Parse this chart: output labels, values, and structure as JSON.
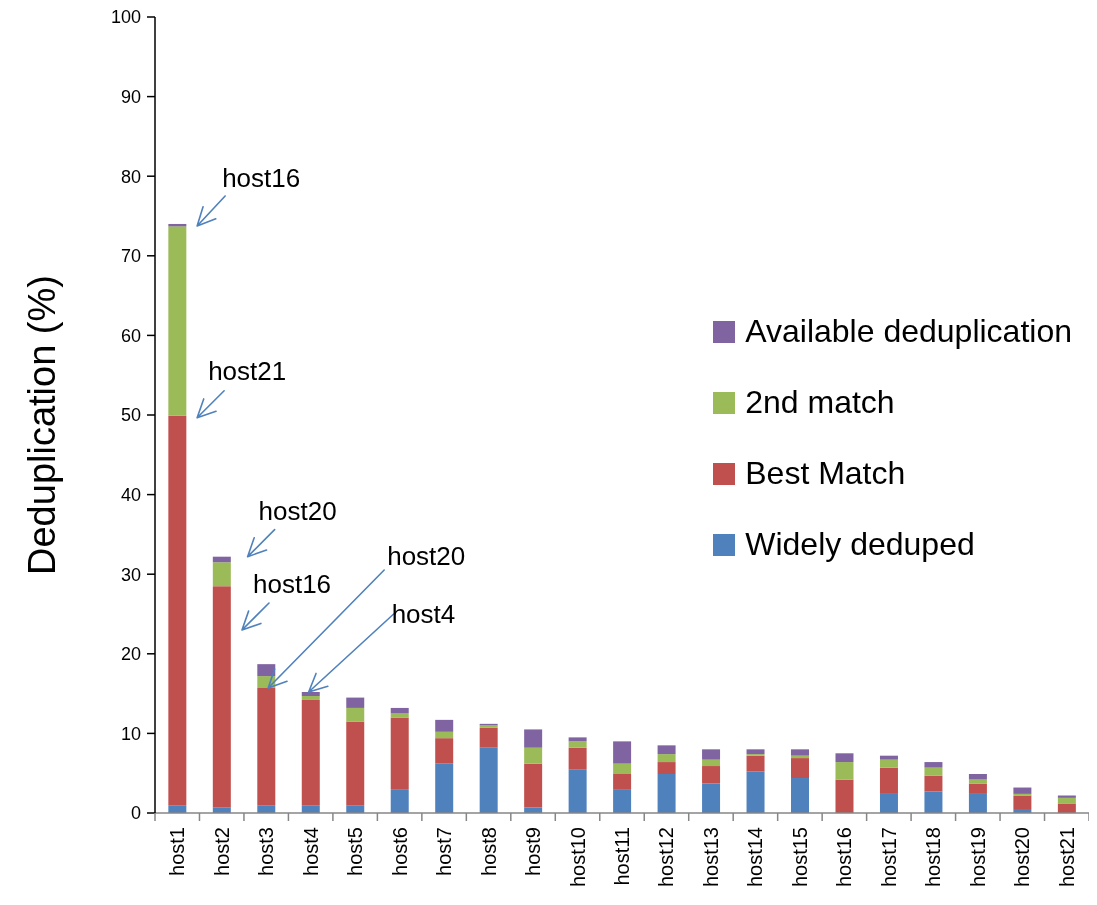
{
  "chart_data": {
    "type": "bar",
    "stacked": true,
    "ylabel": "Deduplication (%)",
    "categories": [
      "host1",
      "host2",
      "host3",
      "host4",
      "host5",
      "host6",
      "host7",
      "host8",
      "host9",
      "host10",
      "host11",
      "host12",
      "host13",
      "host14",
      "host15",
      "host16",
      "host17",
      "host18",
      "host19",
      "host20",
      "host21"
    ],
    "series": [
      {
        "name": "Widely deduped",
        "color": "#4f81bd",
        "values": [
          0.9,
          0.7,
          0.9,
          0.9,
          0.9,
          3.0,
          6.2,
          8.2,
          0.7,
          5.5,
          3.0,
          4.9,
          3.7,
          5.2,
          4.4,
          0,
          2.4,
          2.7,
          2.4,
          0.5,
          0
        ]
      },
      {
        "name": "Best Match",
        "color": "#c0504d",
        "values": [
          49.0,
          27.8,
          14.8,
          13.3,
          10.6,
          9.0,
          3.2,
          2.5,
          5.5,
          2.7,
          1.9,
          1.5,
          2.2,
          2.0,
          2.5,
          4.2,
          3.3,
          2.0,
          1.3,
          1.7,
          1.2
        ]
      },
      {
        "name": "2nd match",
        "color": "#9bbb59",
        "values": [
          23.8,
          3.0,
          1.5,
          0.5,
          1.7,
          0.5,
          0.8,
          0.3,
          2.0,
          0.8,
          1.3,
          1.0,
          0.8,
          0.2,
          0.3,
          2.2,
          1.0,
          1.0,
          0.5,
          0.2,
          0.7
        ]
      },
      {
        "name": "Available deduplication",
        "color": "#8064a2",
        "values": [
          0.3,
          0.7,
          1.5,
          0.5,
          1.3,
          0.7,
          1.5,
          0.2,
          2.3,
          0.5,
          2.8,
          1.1,
          1.3,
          0.6,
          0.8,
          1.1,
          0.5,
          0.7,
          0.7,
          0.8,
          0.3
        ]
      }
    ],
    "ylim": [
      0,
      100
    ],
    "yticks": [
      0,
      10,
      20,
      30,
      40,
      50,
      60,
      70,
      80,
      90,
      100
    ],
    "legend": "right",
    "annotations": [
      {
        "text": "host16",
        "x": "host1",
        "y": 74
      },
      {
        "text": "host21",
        "x": "host1",
        "y": 49.9
      },
      {
        "text": "host20",
        "x": "host2",
        "y": 32.2
      },
      "host16",
      {
        "text": "host20",
        "x": "host3",
        "y": 15.7
      },
      {
        "text": "host4",
        "x": "host4",
        "y": 15.2
      }
    ]
  }
}
